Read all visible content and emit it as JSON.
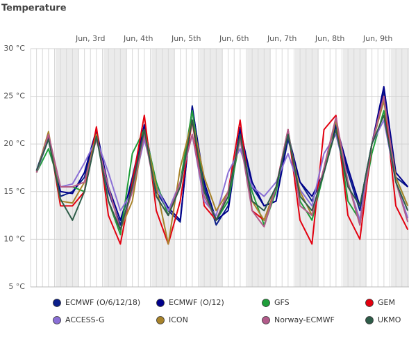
{
  "chart_data": {
    "type": "line",
    "title": "Temperature",
    "x": [
      3,
      9,
      15,
      21,
      27,
      33,
      39,
      45,
      51,
      57,
      63,
      69,
      75,
      81,
      87,
      93,
      99,
      105,
      111,
      117,
      123,
      129,
      135,
      141,
      147,
      153,
      159,
      165,
      171,
      177,
      183,
      189
    ],
    "xlim": [
      0,
      189.6
    ],
    "xticks": [
      {
        "value": 30,
        "label": "Jun, 3rd"
      },
      {
        "value": 54,
        "label": "Jun, 4th"
      },
      {
        "value": 78,
        "label": "Jun, 5th"
      },
      {
        "value": 102,
        "label": "Jun, 6th"
      },
      {
        "value": 126,
        "label": "Jun, 7th"
      },
      {
        "value": 150,
        "label": "Jun, 8th"
      },
      {
        "value": 174,
        "label": "Jun, 9th"
      }
    ],
    "ylim": [
      5,
      30
    ],
    "yticks": [
      {
        "value": 5,
        "label": "5 °C"
      },
      {
        "value": 10,
        "label": "10 °C"
      },
      {
        "value": 15,
        "label": "15 °C"
      },
      {
        "value": 20,
        "label": "20 °C"
      },
      {
        "value": 25,
        "label": "25 °C"
      },
      {
        "value": 30,
        "label": "30 °C"
      }
    ],
    "grid": true,
    "legend": "bottom",
    "series": [
      {
        "name": "ECMWF (O/6/12/18)",
        "color": "#0b1f8a",
        "values": [
          17.2,
          21,
          14.5,
          15,
          16.5,
          21.3,
          15,
          11.5,
          16.5,
          22,
          15,
          13,
          11.8,
          24,
          15.5,
          11.5,
          13.5,
          21.7,
          15.5,
          13.5,
          14,
          20.5,
          16,
          14,
          17,
          21.8,
          17,
          13,
          20,
          25.5,
          16.5,
          15.5
        ]
      },
      {
        "name": "ECMWF (O/12)",
        "color": "#00008b",
        "values": [
          17.2,
          20.8,
          15,
          14.8,
          17,
          21.5,
          15.5,
          12,
          16,
          22,
          15.5,
          13.3,
          12,
          23.8,
          16,
          12,
          13,
          21.5,
          16,
          13.5,
          14,
          21,
          16,
          14.5,
          17,
          22,
          17.5,
          13.5,
          20,
          26,
          17,
          15.5
        ]
      },
      {
        "name": "GFS",
        "color": "#1f9e3a",
        "values": [
          17,
          19.5,
          15.5,
          15.5,
          15,
          21,
          14,
          10.5,
          19,
          21.5,
          16,
          12.5,
          16,
          23.5,
          15,
          12,
          14,
          20.5,
          15,
          11.5,
          15,
          21.5,
          14,
          12,
          17,
          22.5,
          14,
          12,
          19,
          23.5,
          16.5,
          13.5
        ]
      },
      {
        "name": "GEM",
        "color": "#e3000f",
        "values": [
          17,
          21,
          13.5,
          13.5,
          15,
          21.8,
          12.5,
          9.5,
          16,
          23,
          13,
          9.5,
          14,
          22.5,
          13.5,
          12,
          15,
          22.5,
          13,
          12,
          15.5,
          21.5,
          12,
          9.5,
          21.5,
          23,
          12.5,
          10,
          20,
          25,
          13.5,
          11
        ]
      },
      {
        "name": "ACCESS-G",
        "color": "#8a6fd6",
        "values": [
          17,
          20.5,
          15.5,
          15.8,
          18,
          20.5,
          17,
          13,
          15,
          20.5,
          15.5,
          13,
          16,
          21,
          14,
          12.5,
          17,
          19.5,
          15.5,
          14.5,
          16,
          19,
          15.2,
          13.5,
          19,
          21,
          16,
          12,
          20,
          22.5,
          16,
          12.2
        ]
      },
      {
        "name": "ICON",
        "color": "#a8832a",
        "values": [
          17,
          21.3,
          14,
          13.8,
          16,
          21,
          14,
          11,
          14,
          21.5,
          15.5,
          9.5,
          17.5,
          22.5,
          16.5,
          13,
          15,
          20.5,
          14,
          12,
          15.5,
          21,
          15,
          12.5,
          17.5,
          22.5,
          16,
          11.5,
          20,
          24.5,
          16.5,
          13.5
        ]
      },
      {
        "name": "Norway-ECMWF",
        "color": "#b25b8a",
        "values": [
          17,
          21,
          15.5,
          15.5,
          16,
          20.5,
          15.5,
          11,
          15,
          21,
          14.5,
          12.5,
          16,
          21,
          14.5,
          12,
          15,
          20.5,
          13,
          11.3,
          15.5,
          21.5,
          13.5,
          12.5,
          17.5,
          22.8,
          16,
          11.5,
          20,
          25,
          16,
          11.8
        ]
      },
      {
        "name": "UKMO",
        "color": "#2e5c48",
        "values": [
          17.2,
          20.5,
          14.2,
          12,
          15,
          20.8,
          14,
          11,
          15.5,
          21.5,
          14.5,
          12.5,
          15.5,
          22.5,
          15,
          12,
          14.5,
          21,
          14,
          13,
          15.5,
          21,
          14.5,
          13,
          17,
          21.5,
          15.5,
          13.5,
          20,
          23,
          16,
          13
        ]
      }
    ]
  }
}
